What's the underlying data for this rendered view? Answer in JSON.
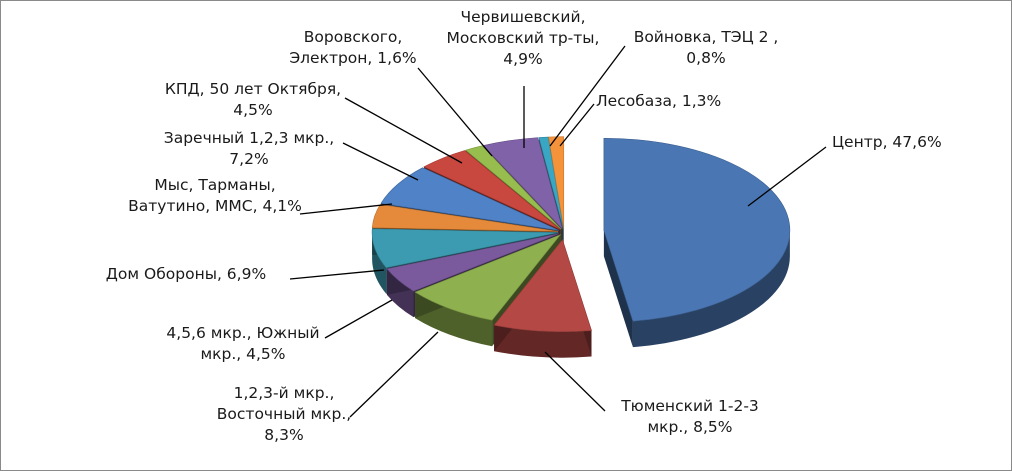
{
  "chart_data": {
    "type": "pie",
    "style": "3d-exploded",
    "title": "",
    "slices": [
      {
        "label": "Центр, 47,6%",
        "lines": [
          "Центр, 47,6%"
        ],
        "value": 47.6,
        "color": "#4a77b4"
      },
      {
        "label": "Тюменский 1-2-3 мкр., 8,5%",
        "lines": [
          "Тюменский 1-2-3",
          "мкр., 8,5%"
        ],
        "value": 8.5,
        "color": "#b44845"
      },
      {
        "label": "1,2,3-й мкр., Восточный мкр., 8,3%",
        "lines": [
          "1,2,3-й мкр.,",
          "Восточный мкр.,",
          "8,3%"
        ],
        "value": 8.3,
        "color": "#8fb04f"
      },
      {
        "label": "4,5,6 мкр., Южный мкр., 4,5%",
        "lines": [
          "4,5,6 мкр., Южный",
          "мкр., 4,5%"
        ],
        "value": 4.5,
        "color": "#7a5a9c"
      },
      {
        "label": "Дом Обороны, 6,9%",
        "lines": [
          "Дом Обороны, 6,9%"
        ],
        "value": 6.9,
        "color": "#3c9bb0"
      },
      {
        "label": "Мыс, Тарманы, Ватутино, ММС, 4,1%",
        "lines": [
          "Мыс, Тарманы,",
          "Ватутино, ММС, 4,1%"
        ],
        "value": 4.1,
        "color": "#e58a3a"
      },
      {
        "label": "Заречный 1,2,3 мкр., 7,2%",
        "lines": [
          "Заречный 1,2,3 мкр.,",
          "7,2%"
        ],
        "value": 7.2,
        "color": "#4f82c6"
      },
      {
        "label": "КПД, 50 лет Октября, 4,5%",
        "lines": [
          "КПД, 50 лет Октября,",
          "4,5%"
        ],
        "value": 4.5,
        "color": "#c8473f"
      },
      {
        "label": "Воровского, Электрон, 1,6%",
        "lines": [
          "Воровского,",
          "Электрон, 1,6%"
        ],
        "value": 1.6,
        "color": "#97bd4f"
      },
      {
        "label": "Червишевский, Московский тр-ты, 4,9%",
        "lines": [
          "Червишевский,",
          "Московский тр-ты,",
          "4,9%"
        ],
        "value": 4.9,
        "color": "#8062a8"
      },
      {
        "label": "Войновка, ТЭЦ 2 , 0,8%",
        "lines": [
          "Войновка, ТЭЦ 2 ,",
          "0,8%"
        ],
        "value": 0.8,
        "color": "#39a6c4"
      },
      {
        "label": "Лесобаза, 1,3%",
        "lines": [
          "Лесобаза, 1,3%"
        ],
        "value": 1.3,
        "color": "#f5933b"
      }
    ]
  }
}
